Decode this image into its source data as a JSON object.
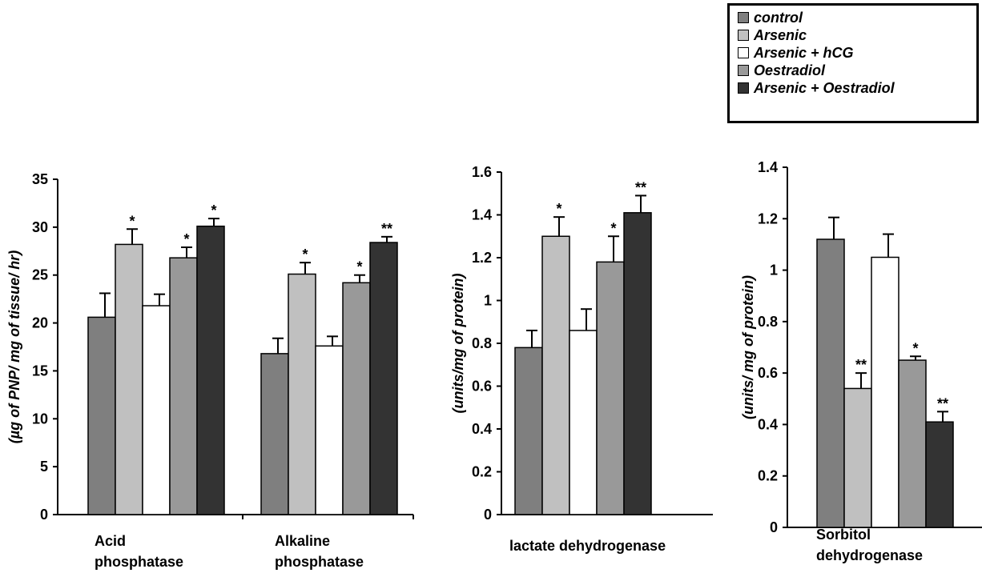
{
  "series": [
    {
      "name": "control",
      "color": "#7f7f7f"
    },
    {
      "name": "Arsenic",
      "color": "#c0c0c0"
    },
    {
      "name": "Arsenic + hCG",
      "color": "#ffffff"
    },
    {
      "name": "Oestradiol",
      "color": "#999999"
    },
    {
      "name": "Arsenic + Oestradiol",
      "color": "#333333"
    }
  ],
  "chart_data": [
    {
      "type": "bar",
      "title": "",
      "xlabel": "",
      "ylabel": "(µg of PNP/ mg of tissue/ hr)",
      "categories": [
        "Acid phosphatase",
        "Alkaline phosphatase"
      ],
      "ylim": [
        0,
        35
      ],
      "yticks": [
        "0",
        "5",
        "10",
        "15",
        "20",
        "25",
        "30",
        "35"
      ],
      "series": [
        {
          "name": "control",
          "values": [
            20.6,
            16.8
          ],
          "errors": [
            2.5,
            1.6
          ],
          "marks": [
            "",
            ""
          ]
        },
        {
          "name": "Arsenic",
          "values": [
            28.2,
            25.1
          ],
          "errors": [
            1.6,
            1.2
          ],
          "marks": [
            "*",
            "*"
          ]
        },
        {
          "name": "Arsenic + hCG",
          "values": [
            21.8,
            17.6
          ],
          "errors": [
            1.2,
            1.0
          ],
          "marks": [
            "",
            ""
          ]
        },
        {
          "name": "Oestradiol",
          "values": [
            26.8,
            24.2
          ],
          "errors": [
            1.1,
            0.8
          ],
          "marks": [
            "*",
            "*"
          ]
        },
        {
          "name": "Arsenic + Oestradiol",
          "values": [
            30.1,
            28.4
          ],
          "errors": [
            0.8,
            0.6
          ],
          "marks": [
            "*",
            "**"
          ]
        }
      ]
    },
    {
      "type": "bar",
      "title": "",
      "xlabel": "",
      "ylabel": "(units/mg of protein)",
      "categories": [
        "lactate dehydrogenase"
      ],
      "ylim": [
        0,
        1.6
      ],
      "yticks": [
        "0",
        "0.2",
        "0.4",
        "0.6",
        "0.8",
        "1",
        "1.2",
        "1.4",
        "1.6"
      ],
      "series": [
        {
          "name": "control",
          "values": [
            0.78
          ],
          "errors": [
            0.08
          ],
          "marks": [
            ""
          ]
        },
        {
          "name": "Arsenic",
          "values": [
            1.3
          ],
          "errors": [
            0.09
          ],
          "marks": [
            "*"
          ]
        },
        {
          "name": "Arsenic + hCG",
          "values": [
            0.86
          ],
          "errors": [
            0.1
          ],
          "marks": [
            ""
          ]
        },
        {
          "name": "Oestradiol",
          "values": [
            1.18
          ],
          "errors": [
            0.12
          ],
          "marks": [
            "*"
          ]
        },
        {
          "name": "Arsenic + Oestradiol",
          "values": [
            1.41
          ],
          "errors": [
            0.08
          ],
          "marks": [
            "**"
          ]
        }
      ]
    },
    {
      "type": "bar",
      "title": "",
      "xlabel": "",
      "ylabel": "(units/ mg of protein)",
      "categories": [
        "Sorbitol dehydrogenase"
      ],
      "ylim": [
        0,
        1.4
      ],
      "yticks": [
        "0",
        "0.2",
        "0.4",
        "0.6",
        "0.8",
        "1",
        "1.2",
        "1.4"
      ],
      "series": [
        {
          "name": "control",
          "values": [
            1.12
          ],
          "errors": [
            0.085
          ],
          "marks": [
            ""
          ]
        },
        {
          "name": "Arsenic",
          "values": [
            0.54
          ],
          "errors": [
            0.06
          ],
          "marks": [
            "**"
          ]
        },
        {
          "name": "Arsenic + hCG",
          "values": [
            1.05
          ],
          "errors": [
            0.09
          ],
          "marks": [
            ""
          ]
        },
        {
          "name": "Oestradiol",
          "values": [
            0.65
          ],
          "errors": [
            0.015
          ],
          "marks": [
            "*"
          ]
        },
        {
          "name": "Arsenic + Oestradiol",
          "values": [
            0.41
          ],
          "errors": [
            0.04
          ],
          "marks": [
            "**"
          ]
        }
      ]
    }
  ]
}
